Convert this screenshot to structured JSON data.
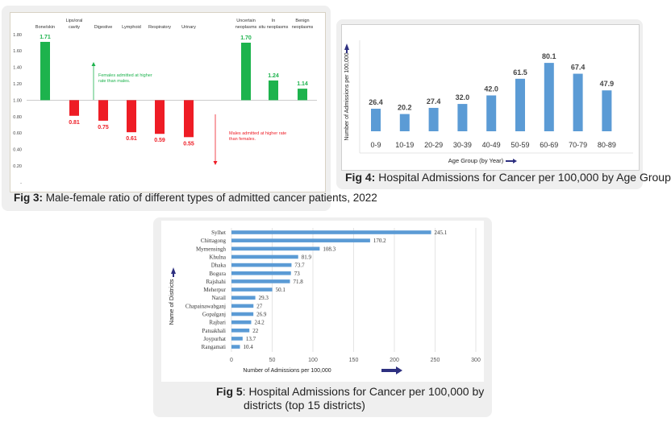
{
  "chart_data": [
    {
      "type": "bar",
      "caption_label": "Fig 3:",
      "caption_text": " Male-female ratio of different types of admitted cancer patients, 2022",
      "categories": [
        "Bone/skin",
        "Lips/oral cavity",
        "Digestive",
        "Lymphoid",
        "Respiratory",
        "Urinary",
        "Uncertain neoplasms",
        "In situ neoplasms",
        "Benign neoplasms"
      ],
      "values": [
        1.71,
        0.81,
        0.75,
        0.61,
        0.59,
        0.55,
        1.7,
        1.24,
        1.14
      ],
      "baseline": 1.0,
      "yticks": [
        "-",
        "0.20",
        "0.40",
        "0.60",
        "0.80",
        "1.00",
        "1.20",
        "1.40",
        "1.60",
        "1.80"
      ],
      "ylim": [
        0,
        1.8
      ],
      "annotations": [
        "Females admitted at higher rate than males.",
        "Males admitted at higher rate than females."
      ],
      "colors": {
        "above": "#1db34d",
        "below": "#ee1c25"
      }
    },
    {
      "type": "bar",
      "caption_label": "Fig 4:",
      "caption_text": " Hospital Admissions for Cancer per 100,000 by Age Group",
      "categories": [
        "0-9",
        "10-19",
        "20-29",
        "30-39",
        "40-49",
        "50-59",
        "60-69",
        "70-79",
        "80-89"
      ],
      "values": [
        26.4,
        20.2,
        27.4,
        32.0,
        42.0,
        61.5,
        80.1,
        67.4,
        47.9
      ],
      "xlabel": "Age Group (by Year)",
      "ylabel": "Number of Admissions per 100,000",
      "colors": {
        "bar": "#5b9bd5",
        "arrow": "#2e3080"
      }
    },
    {
      "type": "bar",
      "orientation": "horizontal",
      "caption_label": "Fig 5",
      "caption_text": ": Hospital Admissions for Cancer per 100,000 by",
      "caption_text2": "districts (top 15 districts)",
      "categories": [
        "Sylhet",
        "Chittagong",
        "Mymensingh",
        "Khulna",
        "Dhaka",
        "Bogura",
        "Rajshahi",
        "Meherpur",
        "Narail",
        "Chapainawabganj",
        "Gopalganj",
        "Rajbari",
        "Patuakhali",
        "Joypurhat",
        "Rangamati"
      ],
      "values": [
        245.1,
        170.2,
        108.3,
        81.9,
        73.7,
        73,
        71.8,
        50.1,
        29.3,
        27,
        26.9,
        24.2,
        22,
        13.7,
        10.4
      ],
      "value_labels": [
        "245.1",
        "170.2",
        "108.3",
        "81.9",
        "73.7",
        "73",
        "71.8",
        "50.1",
        "29.3",
        "27",
        "26.9",
        "24.2",
        "22",
        "13.7",
        "10.4"
      ],
      "xticks": [
        "0",
        "50",
        "100",
        "150",
        "200",
        "250",
        "300"
      ],
      "xlim": [
        0,
        300
      ],
      "grid": true,
      "xlabel": "Number of Admissions per 100,000",
      "ylabel": "Name of Districts",
      "colors": {
        "bar": "#5b9bd5",
        "arrow": "#2e3080"
      }
    }
  ]
}
